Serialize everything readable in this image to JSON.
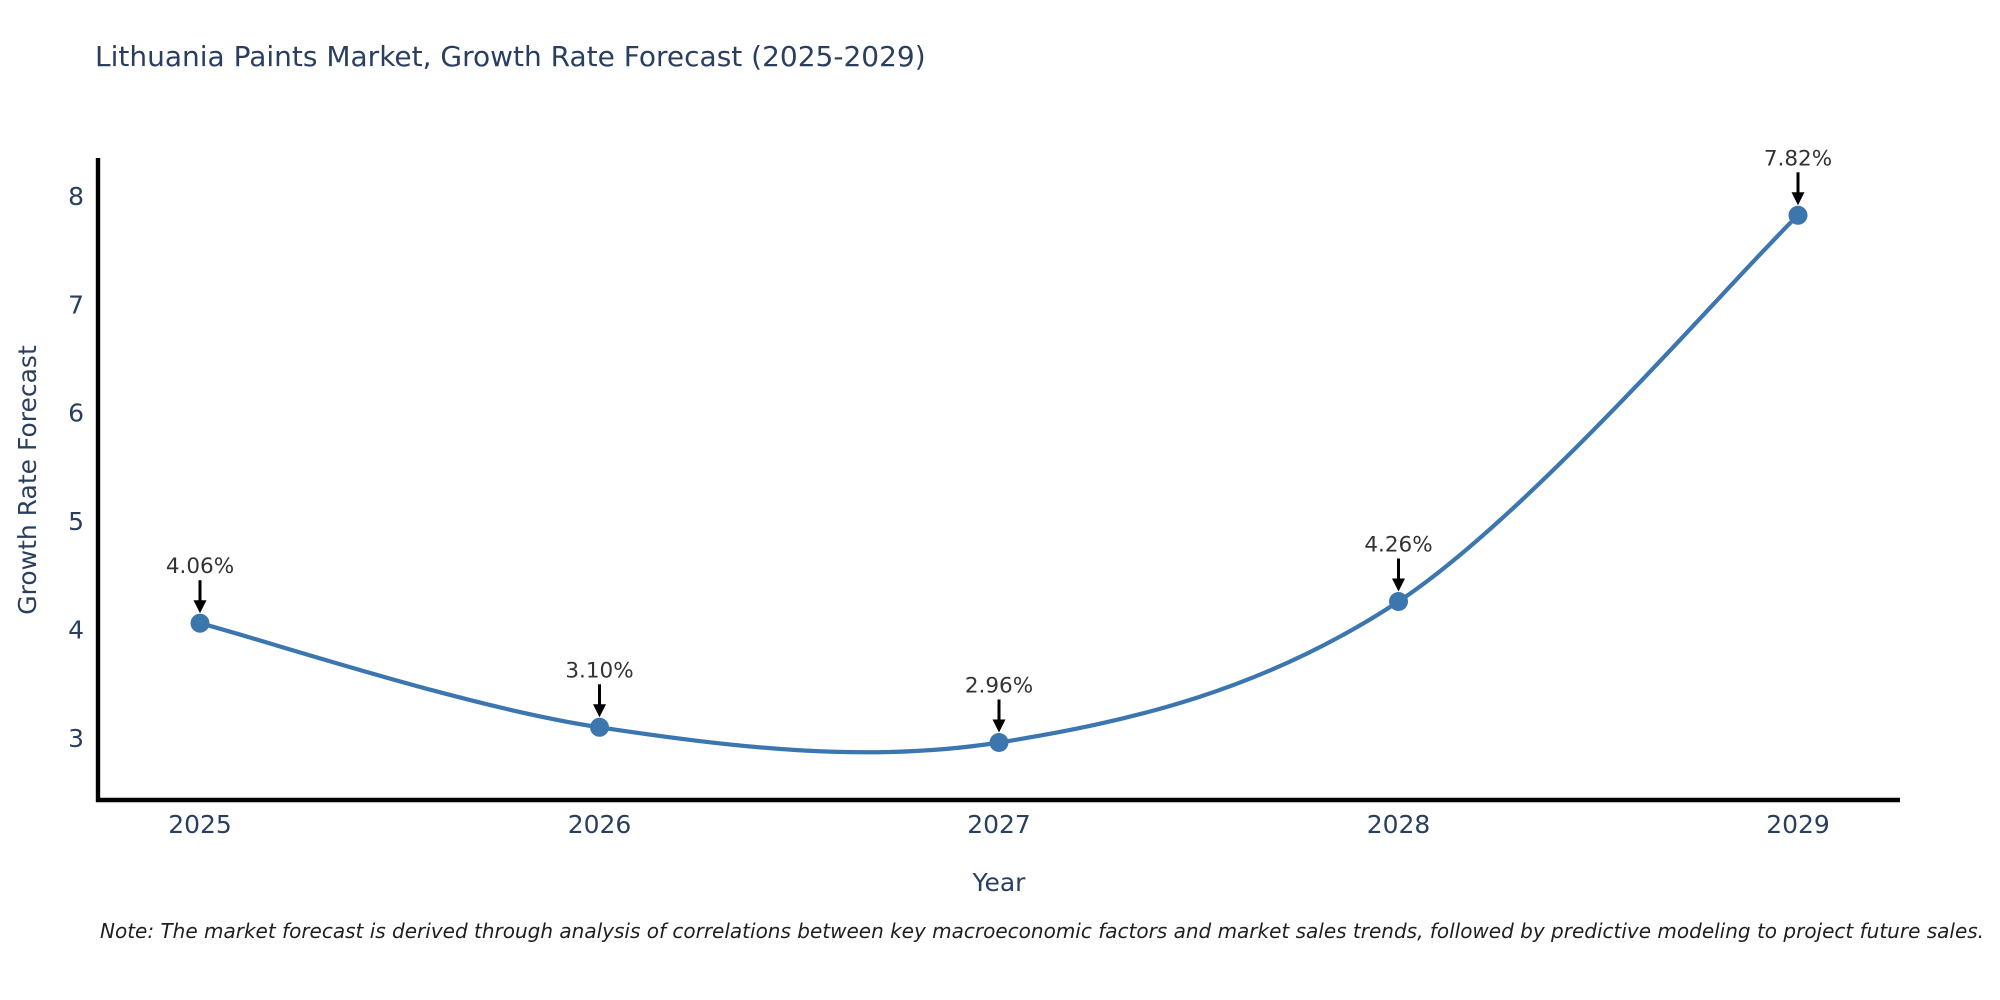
{
  "page": {
    "background": "#ffffff"
  },
  "footnote": "Note: The market forecast is derived through analysis of correlations between key macroeconomic factors and market sales trends, followed by predictive modeling to project future sales.",
  "chart_data": {
    "type": "line",
    "line_shape": "spline",
    "title": "Lithuania Paints Market, Growth Rate Forecast (2025-2029)",
    "xlabel": "Year",
    "ylabel": "Growth Rate Forecast",
    "categories": [
      "2025",
      "2026",
      "2027",
      "2028",
      "2029"
    ],
    "series": [
      {
        "name": "Growth Rate Forecast",
        "values": [
          4.06,
          3.1,
          2.96,
          4.26,
          7.82
        ],
        "point_labels": [
          "4.06%",
          "3.10%",
          "2.96%",
          "4.26%",
          "7.82%"
        ]
      }
    ],
    "yticks": [
      3,
      4,
      5,
      6,
      7,
      8
    ],
    "ylim": [
      2.43,
      8.33
    ],
    "grid": false,
    "legend": "none",
    "markers": true,
    "point_annotations_with_arrows": true,
    "colors": {
      "line": "#3c76af",
      "marker": "#3c76af",
      "axis": "#000000",
      "title_text": "#2a3f5f",
      "tick_text": "#2a3f5f",
      "annotation_text": "#333333",
      "annotation_arrow": "#000000",
      "background": "#ffffff"
    }
  }
}
